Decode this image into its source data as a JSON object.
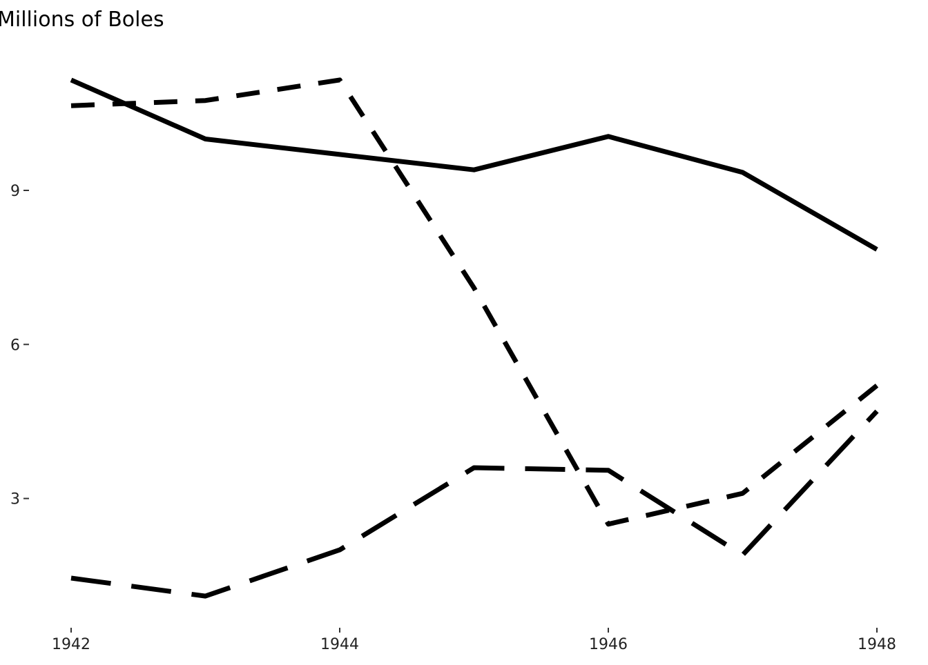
{
  "chart_data": {
    "type": "line",
    "title": "Millions of Boles",
    "xlabel": "",
    "ylabel": "",
    "x": [
      1942,
      1943,
      1944,
      1945,
      1946,
      1947,
      1948
    ],
    "x_ticks": [
      1942,
      1944,
      1946,
      1948
    ],
    "x_tick_labels": [
      "1942",
      "1944",
      "1946",
      "1948"
    ],
    "y_ticks": [
      3,
      6,
      9
    ],
    "y_tick_labels": [
      "3",
      "6",
      "9"
    ],
    "xlim": [
      1942,
      1948
    ],
    "ylim": [
      0.55,
      11.7
    ],
    "grid": false,
    "legend": "none",
    "series": [
      {
        "line_style": "solid",
        "color": "#000000",
        "values": [
          11.15,
          10.0,
          9.7,
          9.4,
          10.05,
          9.35,
          7.85
        ]
      },
      {
        "line_style": "dashed",
        "color": "#000000",
        "values": [
          10.65,
          10.75,
          11.15,
          7.1,
          2.5,
          3.1,
          5.2
        ]
      },
      {
        "line_style": "long-dashed",
        "color": "#000000",
        "values": [
          1.45,
          1.1,
          2.0,
          3.6,
          3.55,
          1.9,
          4.7
        ]
      }
    ]
  }
}
